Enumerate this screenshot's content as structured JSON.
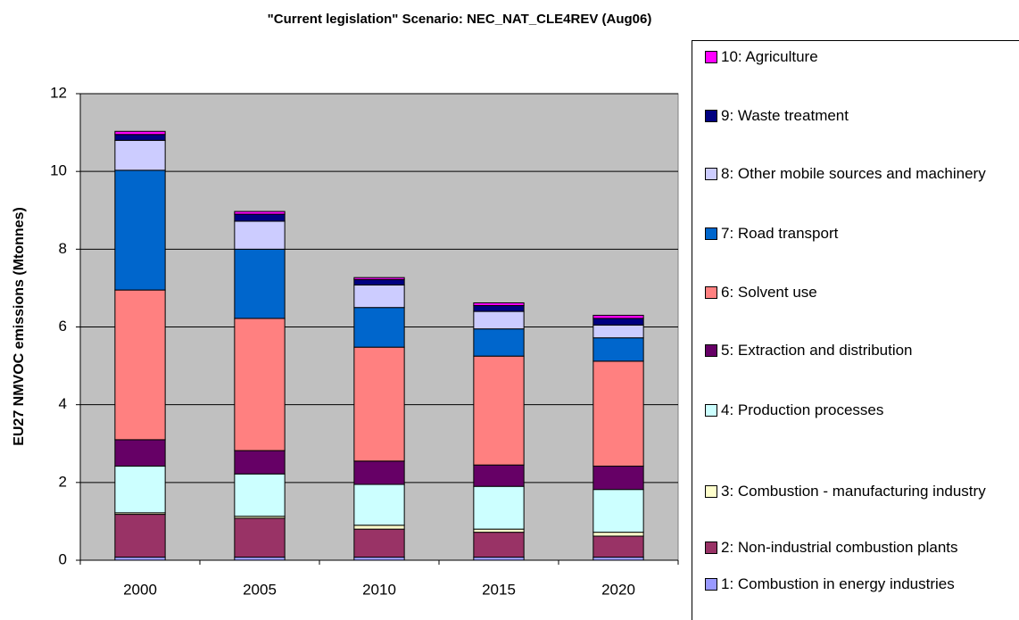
{
  "chart_data": {
    "type": "stacked_bar",
    "title": "\"Current legislation\" Scenario: NEC_NAT_CLE4REV (Aug06)",
    "y_label": "EU27 NMVOC emissions (Mtonnes)",
    "categories": [
      "2000",
      "2005",
      "2010",
      "2015",
      "2020"
    ],
    "ylim": [
      0,
      12
    ],
    "yticks": [
      0,
      2,
      4,
      6,
      8,
      10,
      12
    ],
    "grid": true,
    "series": [
      {
        "name": "1: Combustion in energy industries",
        "color": "#9999ff",
        "values": [
          0.08,
          0.08,
          0.08,
          0.08,
          0.08
        ]
      },
      {
        "name": "2: Non-industrial combustion plants",
        "color": "#993366",
        "values": [
          1.1,
          1.0,
          0.72,
          0.64,
          0.54
        ]
      },
      {
        "name": "3: Combustion - manufacturing industry",
        "color": "#ffffcc",
        "values": [
          0.04,
          0.05,
          0.1,
          0.08,
          0.1
        ]
      },
      {
        "name": "4: Production processes",
        "color": "#ccffff",
        "values": [
          1.2,
          1.09,
          1.05,
          1.1,
          1.1
        ]
      },
      {
        "name": "5: Extraction and distribution",
        "color": "#660066",
        "values": [
          0.68,
          0.6,
          0.6,
          0.55,
          0.6
        ]
      },
      {
        "name": "6: Solvent use",
        "color": "#ff8080",
        "values": [
          3.85,
          3.4,
          2.93,
          2.8,
          2.7
        ]
      },
      {
        "name": "7: Road transport",
        "color": "#0066cc",
        "values": [
          3.08,
          1.78,
          1.02,
          0.7,
          0.6
        ]
      },
      {
        "name": "8: Other mobile sources and machinery",
        "color": "#ccccff",
        "values": [
          0.77,
          0.72,
          0.58,
          0.45,
          0.33
        ]
      },
      {
        "name": "9: Waste treatment",
        "color": "#000080",
        "values": [
          0.15,
          0.18,
          0.14,
          0.15,
          0.17
        ]
      },
      {
        "name": "10: Agriculture",
        "color": "#ff00ff",
        "values": [
          0.08,
          0.07,
          0.05,
          0.07,
          0.08
        ]
      }
    ]
  }
}
